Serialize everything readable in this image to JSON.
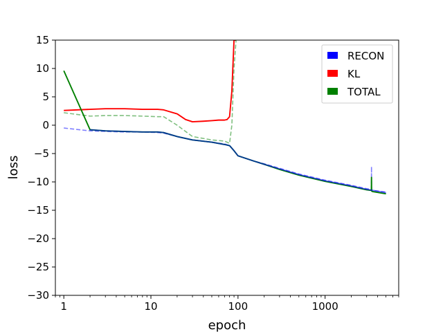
{
  "chart_data": {
    "type": "line",
    "xlabel": "epoch",
    "ylabel": "loss",
    "x_scale": "log",
    "xlim": [
      0.8,
      7000
    ],
    "ylim": [
      -30,
      15
    ],
    "x_ticks": [
      {
        "value": 1,
        "label": "1"
      },
      {
        "value": 10,
        "label": "10"
      },
      {
        "value": 100,
        "label": "100"
      },
      {
        "value": 1000,
        "label": "1000"
      }
    ],
    "y_ticks": [
      {
        "value": 15,
        "label": "15"
      },
      {
        "value": 10,
        "label": "10"
      },
      {
        "value": 5,
        "label": "5"
      },
      {
        "value": 0,
        "label": "0"
      },
      {
        "value": -5,
        "label": "−5"
      },
      {
        "value": -10,
        "label": "−10"
      },
      {
        "value": -15,
        "label": "−15"
      },
      {
        "value": -20,
        "label": "−20"
      },
      {
        "value": -25,
        "label": "−25"
      },
      {
        "value": -30,
        "label": "−30"
      }
    ],
    "grid": false,
    "legend_position": "top-right",
    "legend": [
      {
        "label": "RECON",
        "color": "#0000ff"
      },
      {
        "label": "KL",
        "color": "#ff0000"
      },
      {
        "label": "TOTAL",
        "color": "#008000"
      }
    ],
    "series": [
      {
        "name": "RECON",
        "color": "#0000ff",
        "style": "dashed",
        "opacity": 0.5,
        "x": [
          1,
          2,
          3,
          5,
          8,
          12,
          14,
          20,
          30,
          50,
          70,
          80,
          90,
          100,
          150,
          200,
          300,
          500,
          1000,
          2000,
          3000,
          3400,
          3410,
          3420,
          3500,
          5000
        ],
        "y": [
          -0.5,
          -1.0,
          -1.1,
          -1.2,
          -1.2,
          -1.3,
          -1.4,
          -2.0,
          -2.6,
          -3.0,
          -3.3,
          -3.6,
          -4.5,
          -5.4,
          -6.3,
          -6.8,
          -7.6,
          -8.6,
          -9.7,
          -10.6,
          -11.2,
          -11.3,
          -7.3,
          -11.4,
          -11.5,
          -11.8
        ]
      },
      {
        "name": "KL",
        "color": "#ff0000",
        "style": "solid",
        "opacity": 1,
        "x": [
          1,
          2,
          3,
          5,
          8,
          12,
          14,
          20,
          25,
          30,
          40,
          50,
          60,
          70,
          75,
          80,
          85,
          90,
          95
        ],
        "y": [
          2.6,
          2.8,
          2.9,
          2.9,
          2.8,
          2.8,
          2.7,
          2.0,
          1.0,
          0.6,
          0.7,
          0.8,
          0.9,
          0.9,
          1.0,
          1.5,
          6.0,
          15.0,
          15.0
        ]
      },
      {
        "name": "TOTAL",
        "color": "#008000",
        "style": "dashed",
        "opacity": 0.5,
        "x": [
          1,
          2,
          3,
          5,
          8,
          12,
          14,
          20,
          30,
          50,
          70,
          80,
          85,
          90,
          95
        ],
        "y": [
          2.2,
          1.6,
          1.7,
          1.7,
          1.6,
          1.5,
          1.5,
          0.0,
          -2.0,
          -2.6,
          -2.8,
          -3.2,
          0.0,
          10.0,
          15.0
        ]
      },
      {
        "name": "TOTAL",
        "color": "#008000",
        "style": "solid",
        "opacity": 1,
        "x": [
          1,
          2,
          3,
          5,
          8,
          12,
          14,
          20,
          30,
          50,
          70,
          80,
          90,
          100,
          150,
          200,
          300,
          500,
          1000,
          2000,
          3000,
          3400,
          3410,
          3420,
          3500,
          5000
        ],
        "y": [
          9.6,
          -0.8,
          -1.0,
          -1.1,
          -1.2,
          -1.2,
          -1.3,
          -2.0,
          -2.6,
          -3.0,
          -3.4,
          -3.6,
          -4.5,
          -5.4,
          -6.3,
          -6.9,
          -7.8,
          -8.8,
          -9.9,
          -10.8,
          -11.4,
          -11.5,
          -9.2,
          -11.6,
          -11.7,
          -12.1
        ]
      },
      {
        "name": "RECON",
        "color": "#0000ff",
        "style": "solid",
        "opacity": 0.55,
        "x": [
          2,
          3,
          5,
          8,
          12,
          14,
          20,
          30,
          50,
          70,
          80,
          90,
          100,
          150,
          200,
          300,
          500,
          1000,
          2000,
          3000,
          5000
        ],
        "y": [
          -0.8,
          -1.0,
          -1.1,
          -1.2,
          -1.2,
          -1.3,
          -2.0,
          -2.6,
          -3.0,
          -3.4,
          -3.6,
          -4.5,
          -5.4,
          -6.3,
          -6.9,
          -7.7,
          -8.7,
          -9.8,
          -10.7,
          -11.3,
          -11.9
        ]
      }
    ]
  }
}
